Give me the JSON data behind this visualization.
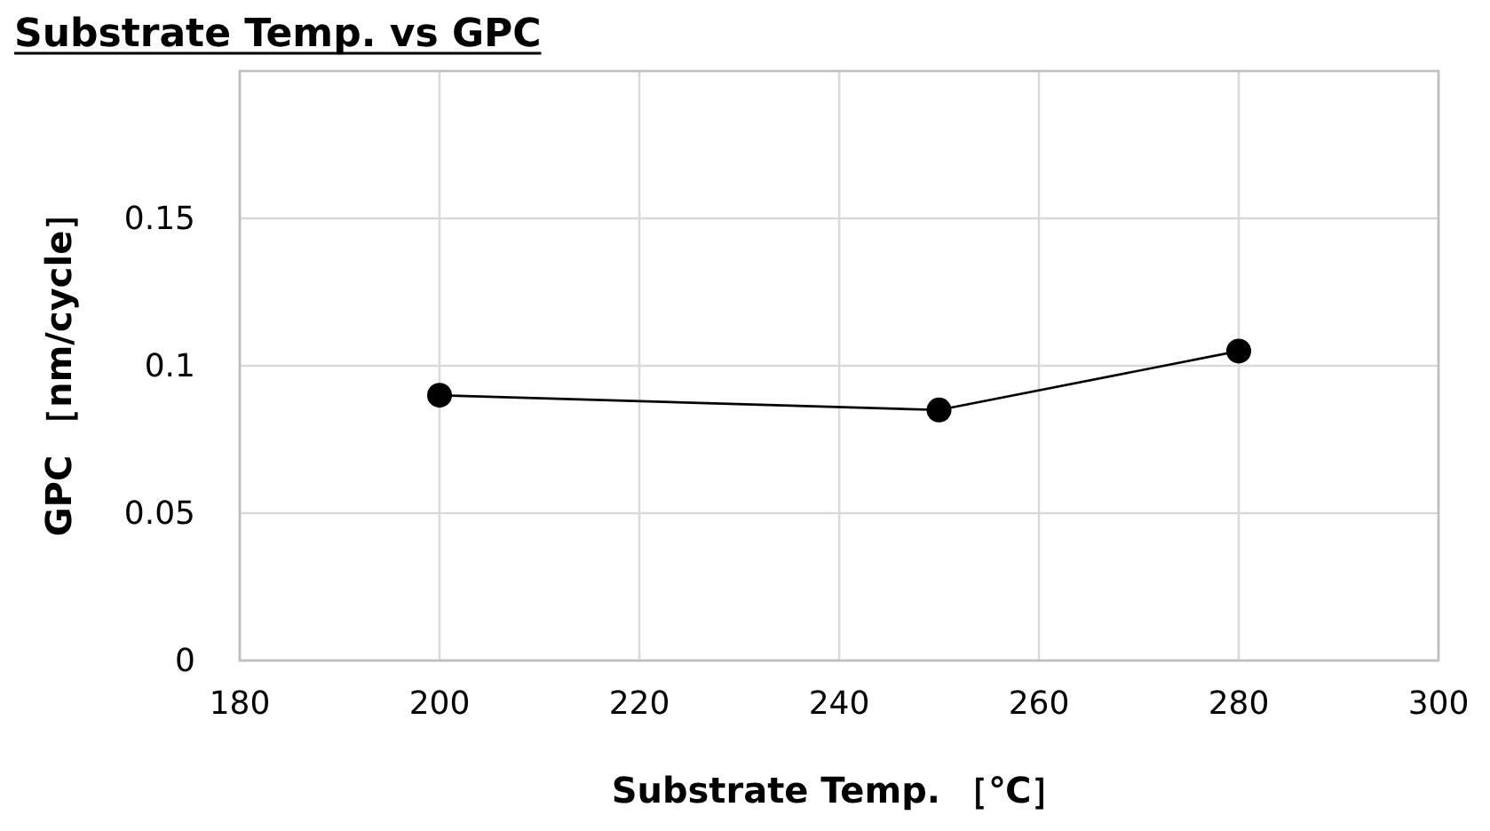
{
  "chart_data": {
    "type": "line",
    "title": "Substrate Temp. vs GPC",
    "xlabel": "Substrate Temp. ［℃］",
    "ylabel": "GPC ［nm/cycle］",
    "x": [
      200,
      250,
      280
    ],
    "series": [
      {
        "color": "#000000",
        "values": [
          0.09,
          0.085,
          0.105
        ]
      }
    ],
    "xlim": [
      180,
      300
    ],
    "xticks": [
      180,
      200,
      220,
      240,
      260,
      280,
      300
    ],
    "ylim": [
      0,
      0.2
    ],
    "yticks": [
      0,
      0.05,
      0.1,
      0.15
    ],
    "grid": true,
    "marker": "circle",
    "line_style": "solid"
  }
}
